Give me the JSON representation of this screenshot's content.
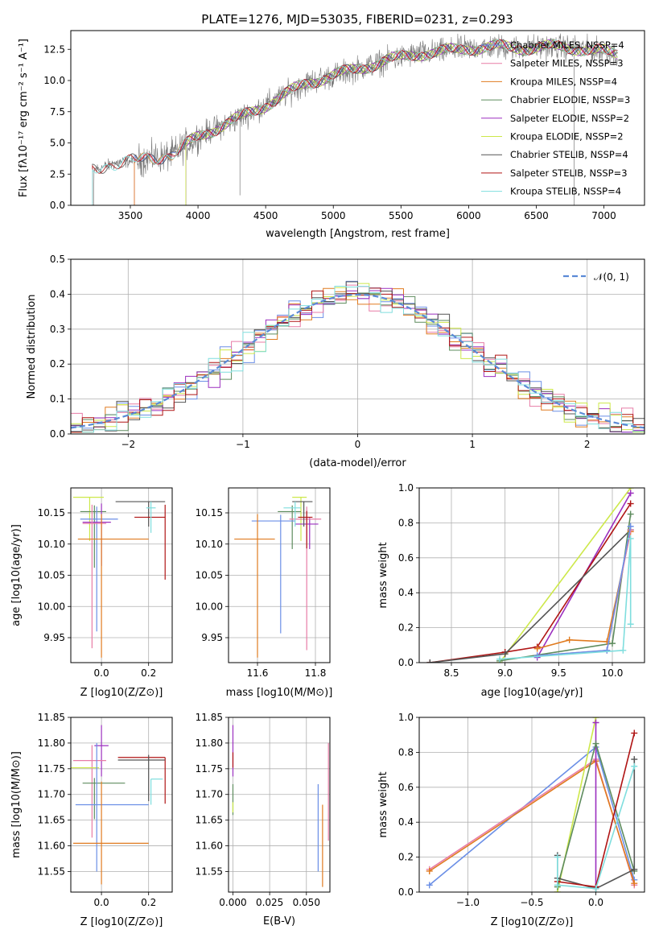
{
  "figure": {
    "title": "PLATE=1276, MJD=53035, FIBERID=0231, z=0.293"
  },
  "colors": {
    "Chabrier MILES": "#6b8fe6",
    "Salpeter MILES": "#e87ca6",
    "Kroupa MILES": "#e07b20",
    "Chabrier ELODIE": "#5e8c5e",
    "Salpeter ELODIE": "#9b2fbf",
    "Kroupa ELODIE": "#cde84a",
    "Chabrier STELIB": "#555555",
    "Salpeter STELIB": "#b01515",
    "Kroupa STELIB": "#7fdede",
    "normal": "#5b8ad6",
    "data": "#7a7a7a"
  },
  "chart_data": [
    {
      "id": "spectrum",
      "type": "line",
      "title": "PLATE=1276, MJD=53035, FIBERID=0231, z=0.293",
      "xlabel": "wavelength [Angstrom, rest frame]",
      "ylabel": "Flux [fλ10⁻¹⁷ erg cm⁻² s⁻¹ A⁻¹]",
      "xlim": [
        3060,
        7300
      ],
      "ylim": [
        0,
        14
      ],
      "xticks": [
        "3500",
        "4000",
        "4500",
        "5000",
        "5500",
        "6000",
        "6500",
        "7000"
      ],
      "yticks": [
        "0.0",
        "2.5",
        "5.0",
        "7.5",
        "10.0",
        "12.5"
      ],
      "legend": [
        "Chabrier MILES, NSSP=4",
        "Salpeter MILES, NSSP=3",
        "Kroupa MILES, NSSP=4",
        "Chabrier ELODIE, NSSP=3",
        "Salpeter ELODIE, NSSP=2",
        "Kroupa ELODIE, NSSP=2",
        "Chabrier STELIB, NSSP=4",
        "Salpeter STELIB, NSSP=3",
        "Kroupa STELIB, NSSP=4"
      ],
      "legend_position": "right",
      "grid": false,
      "continuum_x": [
        3220,
        3400,
        3600,
        3800,
        4000,
        4200,
        4400,
        4600,
        4800,
        5000,
        5200,
        5400,
        5600,
        5800,
        6000,
        6200,
        6400,
        6600,
        6800,
        7000,
        7100
      ],
      "continuum_y": [
        2.8,
        3.4,
        3.7,
        4.0,
        5.5,
        6.5,
        7.5,
        8.6,
        9.8,
        10.4,
        11.0,
        11.6,
        12.1,
        12.3,
        12.6,
        12.7,
        12.6,
        12.7,
        12.6,
        12.3,
        12.1
      ],
      "model_start": {
        "Kroupa MILES": 3530,
        "Salpeter MILES": 3530,
        "Kroupa ELODIE": 3910,
        "Salpeter ELODIE": 3910,
        "Kroupa STELIB": 3220,
        "Chabrier STELIB": 3220,
        "Salpeter STELIB": 3220,
        "Chabrier MILES": 3530,
        "Chabrier ELODIE": 3910
      }
    },
    {
      "id": "residuals",
      "type": "step",
      "xlabel": "(data-model)/error",
      "ylabel": "Normed distribution",
      "xlim": [
        -2.5,
        2.5
      ],
      "ylim": [
        0,
        0.5
      ],
      "xticks": [
        "−2",
        "−1",
        "0",
        "1",
        "2"
      ],
      "yticks": [
        "0.0",
        "0.1",
        "0.2",
        "0.3",
        "0.4",
        "0.5"
      ],
      "legend": [
        "𝒩(0, 1)"
      ],
      "legend_position": "top-right",
      "grid": true,
      "bin_width": 0.1,
      "bin_start": -2.5
    },
    {
      "id": "age_vs_Z",
      "type": "errorbar",
      "xlabel": "Z [log10(Z/Z⊙)]",
      "ylabel": "age  [log10(age/yr)]",
      "xlim": [
        -0.13,
        0.3
      ],
      "ylim": [
        9.91,
        10.19
      ],
      "xticks": [
        "0.0",
        "0.2"
      ],
      "yticks": [
        "9.95",
        "10.00",
        "10.05",
        "10.10",
        "10.15"
      ],
      "grid": true,
      "points": [
        {
          "model": "Kroupa ELODIE",
          "x": -0.05,
          "xerr": [
            0.07,
            0.06
          ],
          "y": 10.175,
          "yerr": [
            0.07,
            0.0
          ]
        },
        {
          "model": "Chabrier ELODIE",
          "x": -0.03,
          "xerr": [
            0.06,
            0.05
          ],
          "y": 10.152,
          "yerr": [
            0.09,
            0.01
          ]
        },
        {
          "model": "Chabrier MILES",
          "x": -0.02,
          "xerr": [
            0.07,
            0.09
          ],
          "y": 10.14,
          "yerr": [
            0.18,
            0.02
          ]
        },
        {
          "model": "Salpeter ELODIE",
          "x": 0.0,
          "xerr": [
            0.08,
            0.04
          ],
          "y": 10.135,
          "yerr": [
            0.07,
            0.03
          ]
        },
        {
          "model": "Salpeter MILES",
          "x": -0.04,
          "xerr": [
            0.04,
            0.06
          ],
          "y": 10.133,
          "yerr": [
            0.2,
            0.03
          ]
        },
        {
          "model": "Kroupa MILES",
          "x": 0.0,
          "xerr": [
            0.1,
            0.2
          ],
          "y": 10.108,
          "yerr": [
            0.19,
            0.04
          ]
        },
        {
          "model": "Chabrier STELIB",
          "x": 0.2,
          "xerr": [
            0.14,
            0.07
          ],
          "y": 10.168,
          "yerr": [
            0.04,
            0.0
          ]
        },
        {
          "model": "Salpeter STELIB",
          "x": 0.27,
          "xerr": [
            0.13,
            0.0
          ],
          "y": 10.143,
          "yerr": [
            0.1,
            0.02
          ]
        },
        {
          "model": "Kroupa STELIB",
          "x": 0.21,
          "xerr": [
            0.02,
            0.02
          ],
          "y": 10.158,
          "yerr": [
            0.04,
            0.01
          ]
        }
      ]
    },
    {
      "id": "age_vs_mass",
      "type": "errorbar",
      "xlabel": "mass [log10(M/M⊙)]",
      "ylabel": "",
      "xlim": [
        11.5,
        11.85
      ],
      "ylim": [
        9.91,
        10.19
      ],
      "xticks": [
        "11.6",
        "11.8"
      ],
      "yticks": [
        "9.95",
        "10.00",
        "10.05",
        "10.10",
        "10.15"
      ],
      "grid": true,
      "points": [
        {
          "model": "Kroupa ELODIE",
          "x": 11.75,
          "xerr": [
            0.03,
            0.02
          ],
          "y": 10.175,
          "yerr": [
            0.07,
            0.0
          ]
        },
        {
          "model": "Chabrier ELODIE",
          "x": 11.72,
          "xerr": [
            0.05,
            0.03
          ],
          "y": 10.152,
          "yerr": [
            0.06,
            0.01
          ]
        },
        {
          "model": "Chabrier MILES",
          "x": 11.68,
          "xerr": [
            0.1,
            0.05
          ],
          "y": 10.137,
          "yerr": [
            0.18,
            0.01
          ]
        },
        {
          "model": "Salpeter ELODIE",
          "x": 11.78,
          "xerr": [
            0.05,
            0.03
          ],
          "y": 10.132,
          "yerr": [
            0.04,
            0.01
          ]
        },
        {
          "model": "Salpeter MILES",
          "x": 11.77,
          "xerr": [
            0.06,
            0.05
          ],
          "y": 10.14,
          "yerr": [
            0.21,
            0.02
          ]
        },
        {
          "model": "Kroupa MILES",
          "x": 11.6,
          "xerr": [
            0.08,
            0.06
          ],
          "y": 10.108,
          "yerr": [
            0.19,
            0.04
          ]
        },
        {
          "model": "Chabrier STELIB",
          "x": 11.76,
          "xerr": [
            0.04,
            0.03
          ],
          "y": 10.168,
          "yerr": [
            0.04,
            0.0
          ]
        },
        {
          "model": "Salpeter STELIB",
          "x": 11.77,
          "xerr": [
            0.03,
            0.02
          ],
          "y": 10.143,
          "yerr": [
            0.05,
            0.01
          ]
        },
        {
          "model": "Kroupa STELIB",
          "x": 11.73,
          "xerr": [
            0.04,
            0.02
          ],
          "y": 10.158,
          "yerr": [
            0.03,
            0.01
          ]
        }
      ]
    },
    {
      "id": "weight_vs_age",
      "type": "line",
      "xlabel": "age  [log10(age/yr)]",
      "ylabel": "mass weight",
      "xlim": [
        8.2,
        10.3
      ],
      "ylim": [
        0,
        1
      ],
      "xticks": [
        "8.5",
        "9.0",
        "9.5",
        "10.0"
      ],
      "yticks": [
        "0.0",
        "0.2",
        "0.4",
        "0.6",
        "0.8",
        "1.0"
      ],
      "grid": true,
      "series": [
        {
          "name": "Kroupa ELODIE",
          "x": [
            8.95,
            10.17
          ],
          "y": [
            0.0,
            1.0
          ]
        },
        {
          "name": "Salpeter ELODIE",
          "x": [
            9.3,
            10.17
          ],
          "y": [
            0.03,
            0.97
          ]
        },
        {
          "name": "Salpeter STELIB",
          "x": [
            8.3,
            9.0,
            9.3,
            10.17
          ],
          "y": [
            0.0,
            0.06,
            0.09,
            0.91
          ]
        },
        {
          "name": "Chabrier STELIB",
          "x": [
            8.3,
            9.0,
            10.17
          ],
          "y": [
            0.0,
            0.05,
            0.76
          ]
        },
        {
          "name": "Chabrier ELODIE",
          "x": [
            8.95,
            10.0,
            10.17
          ],
          "y": [
            0.01,
            0.11,
            0.85
          ]
        },
        {
          "name": "Kroupa MILES",
          "x": [
            9.3,
            9.6,
            9.95,
            10.17
          ],
          "y": [
            0.08,
            0.13,
            0.12,
            0.75
          ]
        },
        {
          "name": "Salpeter MILES",
          "x": [
            9.3,
            9.95,
            10.17
          ],
          "y": [
            0.04,
            0.07,
            0.76
          ]
        },
        {
          "name": "Chabrier MILES",
          "x": [
            9.3,
            9.95,
            10.17
          ],
          "y": [
            0.04,
            0.07,
            0.78
          ]
        },
        {
          "name": "Kroupa STELIB",
          "x": [
            8.95,
            10.1,
            10.17,
            10.17
          ],
          "y": [
            0.02,
            0.07,
            0.71,
            0.22
          ]
        }
      ]
    },
    {
      "id": "mass_vs_Z",
      "type": "errorbar",
      "xlabel": "Z [log10(Z/Z⊙)]",
      "ylabel": "mass [log10(M/M⊙)]",
      "xlim": [
        -0.13,
        0.3
      ],
      "ylim": [
        11.51,
        11.85
      ],
      "xticks": [
        "0.0",
        "0.2"
      ],
      "yticks": [
        "11.55",
        "11.60",
        "11.65",
        "11.70",
        "11.75",
        "11.80",
        "11.85"
      ],
      "grid": true,
      "points": [
        {
          "model": "Salpeter ELODIE",
          "x": 0.0,
          "xerr": [
            0.03,
            0.03
          ],
          "y": 11.795,
          "yerr": [
            0.06,
            0.04
          ]
        },
        {
          "model": "Salpeter STELIB",
          "x": 0.27,
          "xerr": [
            0.2,
            0.0
          ],
          "y": 11.772,
          "yerr": [
            0.09,
            0.0
          ]
        },
        {
          "model": "Chabrier STELIB",
          "x": 0.2,
          "xerr": [
            0.13,
            0.07
          ],
          "y": 11.767,
          "yerr": [
            0.08,
            0.01
          ]
        },
        {
          "model": "Salpeter MILES",
          "x": -0.04,
          "xerr": [
            0.08,
            0.06
          ],
          "y": 11.766,
          "yerr": [
            0.15,
            0.03
          ]
        },
        {
          "model": "Kroupa ELODIE",
          "x": -0.05,
          "xerr": [
            0.1,
            0.04
          ],
          "y": 11.752,
          "yerr": [
            0.0,
            0.0
          ]
        },
        {
          "model": "Kroupa STELIB",
          "x": 0.21,
          "xerr": [
            0.0,
            0.05
          ],
          "y": 11.73,
          "yerr": [
            0.05,
            0.0
          ]
        },
        {
          "model": "Chabrier ELODIE",
          "x": -0.03,
          "xerr": [
            0.05,
            0.13
          ],
          "y": 11.722,
          "yerr": [
            0.07,
            0.01
          ]
        },
        {
          "model": "Chabrier MILES",
          "x": -0.02,
          "xerr": [
            0.09,
            0.22
          ],
          "y": 11.68,
          "yerr": [
            0.13,
            0.12
          ]
        },
        {
          "model": "Kroupa MILES",
          "x": 0.0,
          "xerr": [
            0.12,
            0.2
          ],
          "y": 11.605,
          "yerr": [
            0.08,
            0.12
          ]
        }
      ]
    },
    {
      "id": "mass_vs_EBV",
      "type": "errorbar",
      "xlabel": "E(B-V)",
      "ylabel": "",
      "xlim": [
        -0.003,
        0.066
      ],
      "ylim": [
        11.51,
        11.85
      ],
      "xticks": [
        "0.000",
        "0.025",
        "0.050"
      ],
      "yticks": [
        "11.55",
        "11.60",
        "11.65",
        "11.70",
        "11.75",
        "11.80",
        "11.85"
      ],
      "grid": true,
      "points": [
        {
          "model": "Salpeter ELODIE",
          "x": 0.0,
          "xerr": [
            0.0,
            0.0
          ],
          "y": 11.795,
          "yerr": [
            0.06,
            0.04
          ]
        },
        {
          "model": "Salpeter STELIB",
          "x": 0.0,
          "xerr": [
            0.0,
            0.0
          ],
          "y": 11.772,
          "yerr": [
            0.02,
            0.01
          ]
        },
        {
          "model": "Chabrier ELODIE",
          "x": 0.0,
          "xerr": [
            0.0,
            0.0
          ],
          "y": 11.72,
          "yerr": [
            0.06,
            0.0
          ]
        },
        {
          "model": "Kroupa ELODIE",
          "x": 0.0,
          "xerr": [
            0.0,
            0.0
          ],
          "y": 11.685,
          "yerr": [
            0.02,
            0.0
          ]
        },
        {
          "model": "Chabrier MILES",
          "x": 0.058,
          "xerr": [
            0.0,
            0.0
          ],
          "y": 11.66,
          "yerr": [
            0.11,
            0.06
          ]
        },
        {
          "model": "Kroupa MILES",
          "x": 0.061,
          "xerr": [
            0.0,
            0.0
          ],
          "y": 11.6,
          "yerr": [
            0.08,
            0.08
          ]
        },
        {
          "model": "Salpeter MILES",
          "x": 0.065,
          "xerr": [
            0.0,
            0.0
          ],
          "y": 11.7,
          "yerr": [
            0.09,
            0.1
          ]
        }
      ]
    },
    {
      "id": "weight_vs_Z",
      "type": "line",
      "xlabel": "Z [log10(Z/Z⊙)]",
      "ylabel": "mass weight",
      "xlim": [
        -1.38,
        0.38
      ],
      "ylim": [
        0,
        1
      ],
      "xticks": [
        "−1.0",
        "−0.5",
        "0.0"
      ],
      "yticks": [
        "0.0",
        "0.2",
        "0.4",
        "0.6",
        "0.8",
        "1.0"
      ],
      "grid": true,
      "series": [
        {
          "name": "Chabrier MILES",
          "x": [
            -1.3,
            0.0,
            0.3
          ],
          "y": [
            0.04,
            0.83,
            0.07
          ]
        },
        {
          "name": "Salpeter MILES",
          "x": [
            -1.3,
            0.0,
            0.3
          ],
          "y": [
            0.13,
            0.76,
            0.04
          ]
        },
        {
          "name": "Kroupa MILES",
          "x": [
            -1.3,
            0.0,
            0.3
          ],
          "y": [
            0.12,
            0.75,
            0.05
          ]
        },
        {
          "name": "Kroupa ELODIE",
          "x": [
            -0.3,
            0.0
          ],
          "y": [
            0.0,
            1.0
          ]
        },
        {
          "name": "Salpeter ELODIE",
          "x": [
            0.0,
            0.0
          ],
          "y": [
            0.03,
            0.97
          ]
        },
        {
          "name": "Chabrier ELODIE",
          "x": [
            -0.3,
            0.0,
            0.3
          ],
          "y": [
            0.03,
            0.85,
            0.12
          ]
        },
        {
          "name": "Chabrier STELIB",
          "x": [
            -0.3,
            -0.3,
            0.0,
            0.3,
            0.3
          ],
          "y": [
            0.21,
            0.08,
            0.02,
            0.13,
            0.76
          ]
        },
        {
          "name": "Salpeter STELIB",
          "x": [
            -0.3,
            0.0,
            0.3
          ],
          "y": [
            0.06,
            0.03,
            0.91
          ]
        },
        {
          "name": "Kroupa STELIB",
          "x": [
            -0.3,
            -0.3,
            0.0,
            0.3
          ],
          "y": [
            0.2,
            0.04,
            0.02,
            0.72
          ]
        }
      ]
    }
  ]
}
